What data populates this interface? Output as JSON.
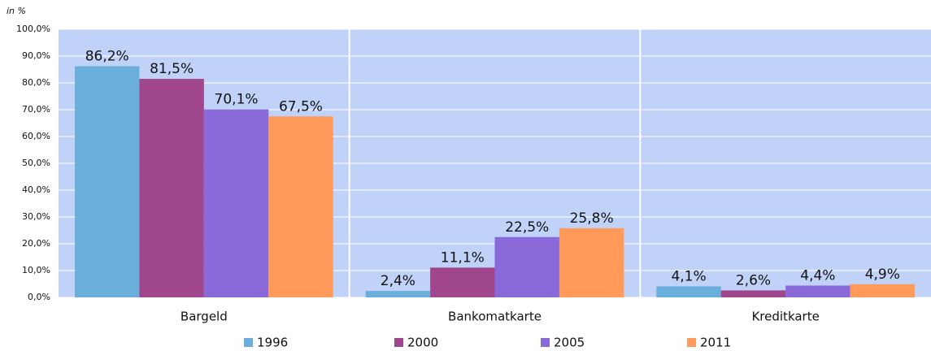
{
  "chart_data": {
    "type": "bar",
    "y_axis_label": "in %",
    "categories": [
      "Bargeld",
      "Bankomatkarte",
      "Kreditkarte"
    ],
    "series": [
      {
        "name": "1996",
        "color": "#6aaedc",
        "values": [
          86.2,
          2.4,
          4.1
        ],
        "value_labels": [
          "86,2%",
          "2,4%",
          "4,1%"
        ]
      },
      {
        "name": "2000",
        "color": "#a0468c",
        "values": [
          81.5,
          11.1,
          2.6
        ],
        "value_labels": [
          "81,5%",
          "11,1%",
          "2,6%"
        ]
      },
      {
        "name": "2005",
        "color": "#8a6ad8",
        "values": [
          70.1,
          22.5,
          4.4
        ],
        "value_labels": [
          "70,1%",
          "22,5%",
          "4,4%"
        ]
      },
      {
        "name": "2011",
        "color": "#ff9a5a",
        "values": [
          67.5,
          25.8,
          4.9
        ],
        "value_labels": [
          "67,5%",
          "25,8%",
          "4,9%"
        ]
      }
    ],
    "ylim": [
      0,
      100
    ],
    "yticks": [
      {
        "value": 0,
        "label": "0,0%"
      },
      {
        "value": 10,
        "label": "10,0%"
      },
      {
        "value": 20,
        "label": "20,0%"
      },
      {
        "value": 30,
        "label": "30,0%"
      },
      {
        "value": 40,
        "label": "40,0%"
      },
      {
        "value": 50,
        "label": "50,0%"
      },
      {
        "value": 60,
        "label": "60,0%"
      },
      {
        "value": 70,
        "label": "70,0%"
      },
      {
        "value": 80,
        "label": "80,0%"
      },
      {
        "value": 90,
        "label": "90,0%"
      },
      {
        "value": 100,
        "label": "100,0%"
      }
    ],
    "grid": true,
    "plot_background": "#c0d2f8",
    "legend": "bottom"
  }
}
